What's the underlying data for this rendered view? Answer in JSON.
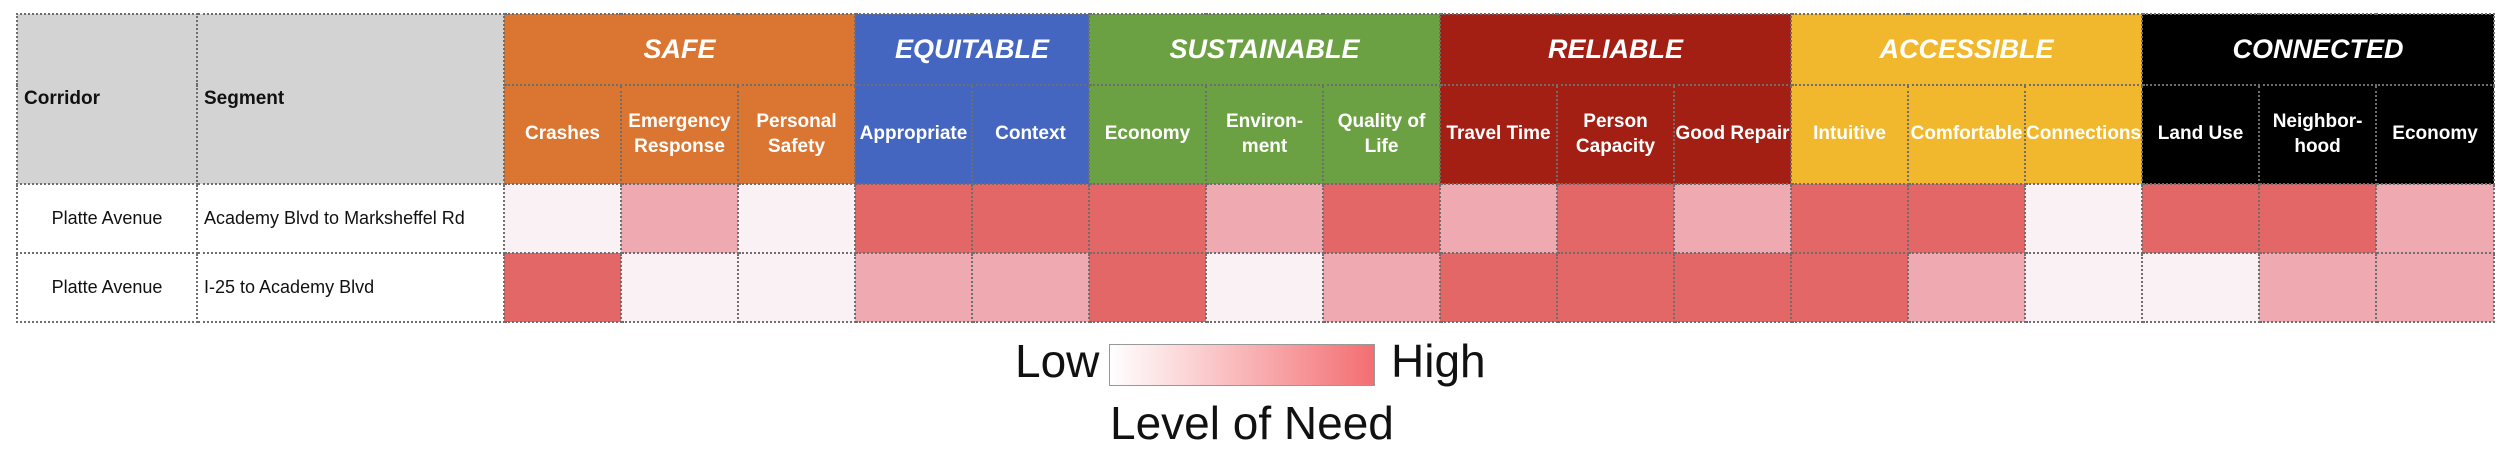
{
  "header": {
    "corridor": "Corridor",
    "segment": "Segment"
  },
  "groups": [
    {
      "label": "SAFE",
      "color": "#db7532",
      "subs": [
        [
          "Crashes"
        ],
        [
          "Emergency",
          "Response"
        ],
        [
          "Personal",
          "Safety"
        ]
      ]
    },
    {
      "label": "EQUITABLE",
      "color": "#4466c1",
      "subs": [
        [
          "Appropriate"
        ],
        [
          "Context"
        ]
      ]
    },
    {
      "label": "SUSTAINABLE",
      "color": "#6ca143",
      "subs": [
        [
          "Economy"
        ],
        [
          "Environ-",
          "ment"
        ],
        [
          "Quality of",
          "Life"
        ]
      ]
    },
    {
      "label": "RELIABLE",
      "color": "#a31f14",
      "subs": [
        [
          "Travel Time"
        ],
        [
          "Person",
          "Capacity"
        ],
        [
          "Good Repair"
        ]
      ]
    },
    {
      "label": "ACCESSIBLE",
      "color": "#f2b82d",
      "subs": [
        [
          "Intuitive"
        ],
        [
          "Comfortable"
        ],
        [
          "Connections"
        ]
      ]
    },
    {
      "label": "CONNECTED",
      "color": "#000000",
      "subs": [
        [
          "Land Use"
        ],
        [
          "Neighbor-",
          "hood"
        ],
        [
          "Economy"
        ]
      ]
    }
  ],
  "need_colors": {
    "low": "#f9f1f3",
    "medium": "#eeaab0",
    "high": "#e36766"
  },
  "rows": [
    {
      "corridor": "Platte Avenue",
      "segment": "Academy Blvd to Marksheffel Rd",
      "levels": [
        "low",
        "medium",
        "low",
        "high",
        "high",
        "high",
        "medium",
        "high",
        "medium",
        "high",
        "medium",
        "high",
        "high",
        "low",
        "high",
        "high",
        "medium"
      ]
    },
    {
      "corridor": "Platte Avenue",
      "segment": "I-25 to Academy Blvd",
      "levels": [
        "high",
        "low",
        "low",
        "medium",
        "medium",
        "high",
        "low",
        "medium",
        "high",
        "high",
        "high",
        "high",
        "medium",
        "low",
        "low",
        "medium",
        "medium"
      ]
    }
  ],
  "legend": {
    "low": "Low",
    "high": "High",
    "title": "Level of Need",
    "gradient_start": "#ffffff",
    "gradient_end": "#f36e72"
  }
}
